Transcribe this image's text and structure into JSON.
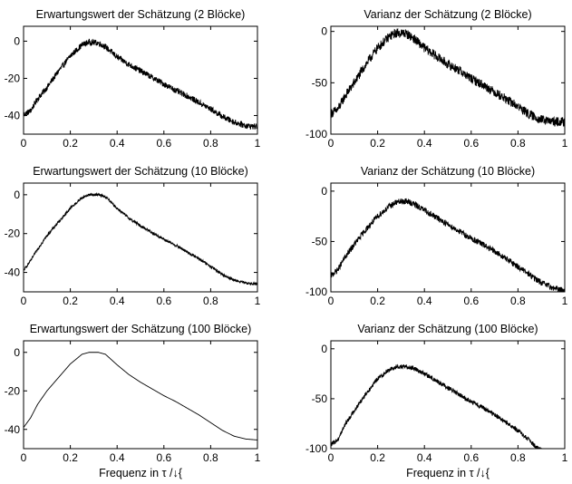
{
  "figure": {
    "xlabel_left": "Frequenz in τ /↓{",
    "xlabel_right": "Frequenz in τ /↓{"
  },
  "chart_data": [
    {
      "type": "line",
      "title": "Erwartungswert der Schätzung (2 Blöcke)",
      "xlabel": "",
      "ylabel": "",
      "xlim": [
        0,
        1
      ],
      "ylim": [
        -50,
        8
      ],
      "xticks": [
        0,
        0.2,
        0.4,
        0.6,
        0.8,
        1
      ],
      "xtick_labels": [
        "0",
        "0.2",
        "0.4",
        "0.6",
        "0.8",
        "1"
      ],
      "yticks": [
        0,
        -20,
        -40
      ],
      "ytick_labels": [
        "0",
        "-20",
        "-40"
      ],
      "grid": false,
      "noise": 1.6,
      "series": [
        {
          "x": [
            0,
            0.03,
            0.06,
            0.1,
            0.15,
            0.2,
            0.25,
            0.28,
            0.32,
            0.35,
            0.4,
            0.45,
            0.5,
            0.55,
            0.6,
            0.65,
            0.7,
            0.75,
            0.8,
            0.85,
            0.9,
            0.95,
            1
          ],
          "values": [
            -39.5,
            -37.5,
            -31,
            -25,
            -16,
            -8,
            -2,
            -0.5,
            -1,
            -3,
            -8.5,
            -12.5,
            -16,
            -19.5,
            -23,
            -26.5,
            -29.5,
            -33,
            -36.5,
            -40.5,
            -43.5,
            -45.5,
            -46
          ]
        }
      ]
    },
    {
      "type": "line",
      "title": "Varianz der Schätzung (2 Blöcke)",
      "xlabel": "",
      "ylabel": "",
      "xlim": [
        0,
        1
      ],
      "ylim": [
        -100,
        5
      ],
      "xticks": [
        0,
        0.2,
        0.4,
        0.6,
        0.8,
        1
      ],
      "xtick_labels": [
        "0",
        "0.2",
        "0.4",
        "0.6",
        "0.8",
        "1"
      ],
      "yticks": [
        0,
        -50,
        -100
      ],
      "ytick_labels": [
        "0",
        "-50",
        "-100"
      ],
      "grid": false,
      "noise": 4.5,
      "series": [
        {
          "x": [
            0,
            0.03,
            0.06,
            0.1,
            0.15,
            0.2,
            0.25,
            0.28,
            0.32,
            0.35,
            0.4,
            0.45,
            0.5,
            0.55,
            0.6,
            0.65,
            0.7,
            0.75,
            0.8,
            0.85,
            0.9,
            0.95,
            1
          ],
          "values": [
            -80,
            -76,
            -63,
            -50,
            -32,
            -16,
            -5,
            -1.5,
            -2,
            -6,
            -16,
            -24,
            -32,
            -38,
            -46,
            -52,
            -59,
            -66,
            -73,
            -81,
            -86,
            -88,
            -88
          ]
        }
      ]
    },
    {
      "type": "line",
      "title": "Erwartungswert der Schätzung (10 Blöcke)",
      "xlabel": "",
      "ylabel": "",
      "xlim": [
        0,
        1
      ],
      "ylim": [
        -50,
        6
      ],
      "xticks": [
        0,
        0.2,
        0.4,
        0.6,
        0.8,
        1
      ],
      "xtick_labels": [
        "0",
        "0.2",
        "0.4",
        "0.6",
        "0.8",
        "1"
      ],
      "yticks": [
        0,
        -20,
        -40
      ],
      "ytick_labels": [
        "0",
        "-20",
        "-40"
      ],
      "grid": false,
      "noise": 0.7,
      "series": [
        {
          "x": [
            0,
            0.03,
            0.06,
            0.1,
            0.15,
            0.2,
            0.25,
            0.28,
            0.32,
            0.35,
            0.4,
            0.45,
            0.5,
            0.55,
            0.6,
            0.65,
            0.7,
            0.75,
            0.8,
            0.85,
            0.9,
            0.95,
            1
          ],
          "values": [
            -39,
            -34,
            -28,
            -21,
            -14,
            -7,
            -1.5,
            0,
            0,
            -1,
            -7,
            -12,
            -16,
            -19.5,
            -23,
            -26,
            -29.5,
            -33,
            -37,
            -41,
            -44,
            -45.5,
            -46
          ]
        }
      ]
    },
    {
      "type": "line",
      "title": "Varianz der Schätzung (10 Blöcke)",
      "xlabel": "",
      "ylabel": "",
      "xlim": [
        0,
        1
      ],
      "ylim": [
        -100,
        8
      ],
      "xticks": [
        0,
        0.2,
        0.4,
        0.6,
        0.8,
        1
      ],
      "xtick_labels": [
        "0",
        "0.2",
        "0.4",
        "0.6",
        "0.8",
        "1"
      ],
      "yticks": [
        0,
        -50,
        -100
      ],
      "ytick_labels": [
        "0",
        "-50",
        "-100"
      ],
      "grid": false,
      "noise": 3,
      "series": [
        {
          "x": [
            0,
            0.03,
            0.06,
            0.1,
            0.15,
            0.2,
            0.25,
            0.28,
            0.32,
            0.35,
            0.4,
            0.45,
            0.5,
            0.55,
            0.6,
            0.65,
            0.7,
            0.75,
            0.8,
            0.85,
            0.9,
            0.95,
            1
          ],
          "values": [
            -84,
            -78,
            -66,
            -53,
            -38,
            -25,
            -15,
            -11,
            -10,
            -12,
            -19,
            -26,
            -33,
            -40,
            -47,
            -53,
            -60,
            -67,
            -75,
            -83,
            -91,
            -96,
            -99
          ]
        }
      ]
    },
    {
      "type": "line",
      "title": "Erwartungswert der Schätzung (100 Blöcke)",
      "xlabel": "Frequenz in τ /↓{",
      "ylabel": "",
      "xlim": [
        0,
        1
      ],
      "ylim": [
        -50,
        6
      ],
      "xticks": [
        0,
        0.2,
        0.4,
        0.6,
        0.8,
        1
      ],
      "xtick_labels": [
        "0",
        "0.2",
        "0.4",
        "0.6",
        "0.8",
        "1"
      ],
      "yticks": [
        0,
        -20,
        -40
      ],
      "ytick_labels": [
        "0",
        "-20",
        "-40"
      ],
      "grid": false,
      "noise": 0,
      "series": [
        {
          "x": [
            0,
            0.03,
            0.06,
            0.1,
            0.15,
            0.2,
            0.25,
            0.28,
            0.32,
            0.35,
            0.4,
            0.45,
            0.5,
            0.55,
            0.6,
            0.65,
            0.7,
            0.75,
            0.8,
            0.85,
            0.9,
            0.95,
            1
          ],
          "values": [
            -39,
            -34,
            -27,
            -20,
            -13,
            -6,
            -1,
            0,
            0,
            -1,
            -6.5,
            -11.5,
            -15.5,
            -19,
            -22.5,
            -25.5,
            -29,
            -32.5,
            -36.5,
            -40.5,
            -43.5,
            -45,
            -45.5
          ]
        }
      ]
    },
    {
      "type": "line",
      "title": "Varianz der Schätzung (100 Blöcke)",
      "xlabel": "Frequenz in τ /↓{",
      "ylabel": "",
      "xlim": [
        0,
        1
      ],
      "ylim": [
        -100,
        8
      ],
      "xticks": [
        0,
        0.2,
        0.4,
        0.6,
        0.8,
        1
      ],
      "xtick_labels": [
        "0",
        "0.2",
        "0.4",
        "0.6",
        "0.8",
        "1"
      ],
      "yticks": [
        0,
        -50,
        -100
      ],
      "ytick_labels": [
        "0",
        "-50",
        "-100"
      ],
      "grid": false,
      "noise": 2.2,
      "series": [
        {
          "x": [
            0,
            0.03,
            0.06,
            0.1,
            0.15,
            0.2,
            0.25,
            0.28,
            0.32,
            0.35,
            0.4,
            0.45,
            0.5,
            0.55,
            0.6,
            0.65,
            0.7,
            0.75,
            0.8,
            0.85,
            0.88,
            0.9
          ],
          "values": [
            -96,
            -91,
            -76,
            -62,
            -45,
            -30,
            -21,
            -18,
            -18,
            -19,
            -25,
            -32,
            -39,
            -46,
            -53,
            -59,
            -66,
            -74,
            -82,
            -92,
            -99,
            -101
          ]
        }
      ]
    }
  ]
}
